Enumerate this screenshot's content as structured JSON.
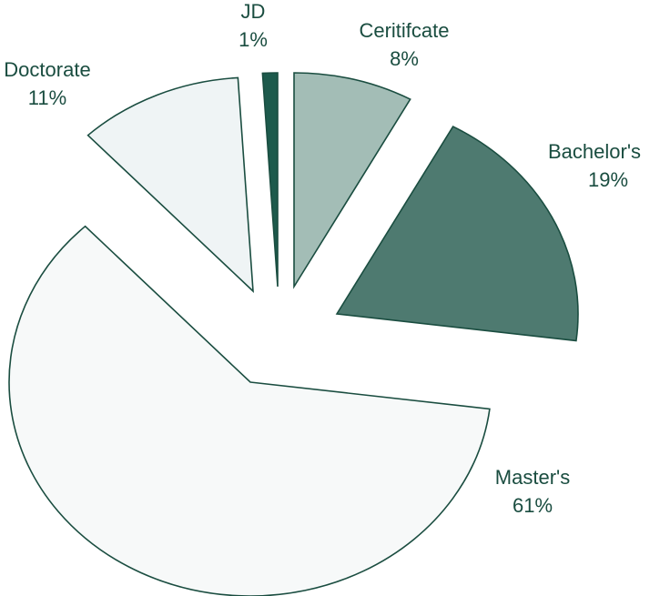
{
  "chart_data": {
    "type": "pie",
    "categories": [
      "Ceritifcate",
      "Bachelor's",
      "Master's",
      "Doctorate",
      "JD"
    ],
    "values": [
      8,
      19,
      61,
      11,
      1
    ],
    "value_labels": [
      "8%",
      "19%",
      "61%",
      "11%",
      "1%"
    ],
    "colors": [
      "#a3bdb6",
      "#4e7a70",
      "#f7f9f9",
      "#eff4f5",
      "#1d5a4c"
    ]
  }
}
